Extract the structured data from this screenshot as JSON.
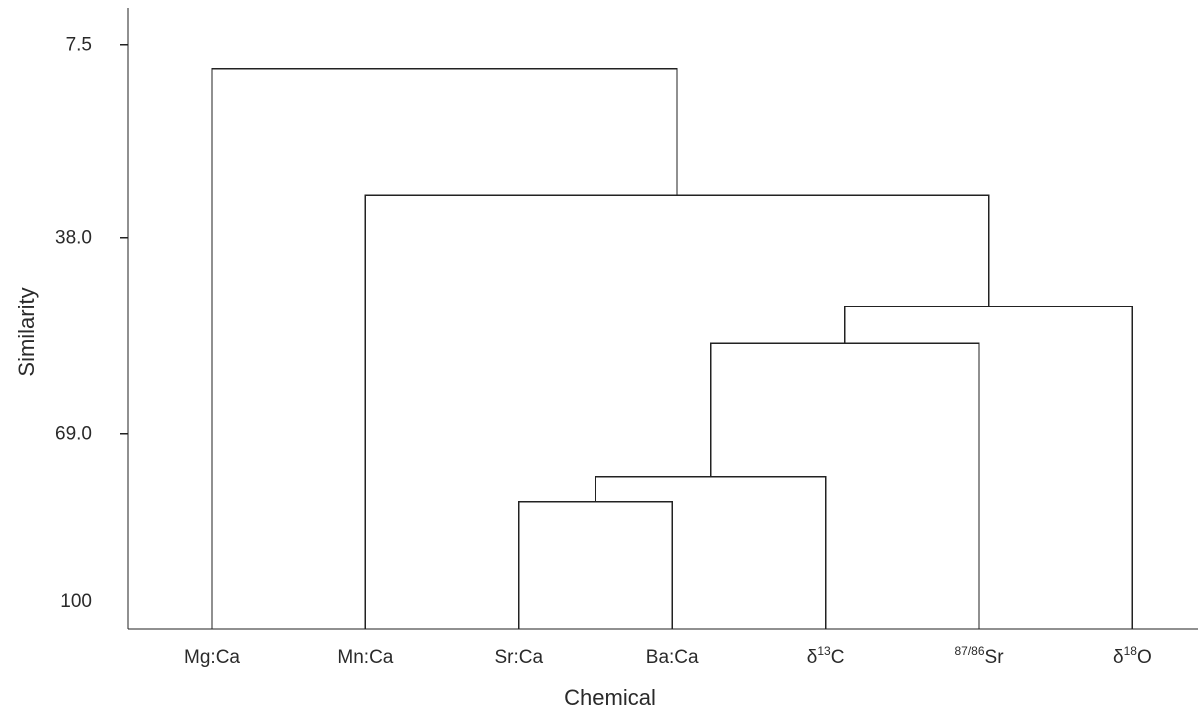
{
  "chart_data": {
    "type": "dendrogram",
    "xlabel": "Chemical",
    "ylabel": "Similarity",
    "yticks": [
      {
        "value": 7.5,
        "label": "7.5"
      },
      {
        "value": 38.0,
        "label": "38.0"
      },
      {
        "value": 69.0,
        "label": "69.0"
      },
      {
        "value": 100,
        "label": "100"
      }
    ],
    "ylim": [
      2,
      100
    ],
    "leaves": [
      {
        "main": "Mg:Ca",
        "sup": "",
        "pre": "",
        "post": ""
      },
      {
        "main": "Mn:Ca",
        "sup": "",
        "pre": "",
        "post": ""
      },
      {
        "main": "Sr:Ca",
        "sup": "",
        "pre": "",
        "post": ""
      },
      {
        "main": "Ba:Ca",
        "sup": "",
        "pre": "",
        "post": ""
      },
      {
        "main": "",
        "pre": "δ",
        "sup": "13",
        "post": "C"
      },
      {
        "main": "",
        "pre": "",
        "sup": "87/86",
        "post": "Sr"
      },
      {
        "main": "",
        "pre": "δ",
        "sup": "18",
        "post": "O"
      }
    ],
    "merges": [
      {
        "left": "leaf:2",
        "right": "leaf:3",
        "height": 79.8
      },
      {
        "left": "node:0",
        "right": "leaf:4",
        "height": 75.8
      },
      {
        "left": "node:1",
        "right": "leaf:5",
        "height": 54.7
      },
      {
        "left": "node:2",
        "right": "leaf:6",
        "height": 48.9
      },
      {
        "left": "leaf:1",
        "right": "node:3",
        "height": 31.3
      },
      {
        "left": "leaf:0",
        "right": "node:4",
        "height": 11.3
      }
    ]
  }
}
